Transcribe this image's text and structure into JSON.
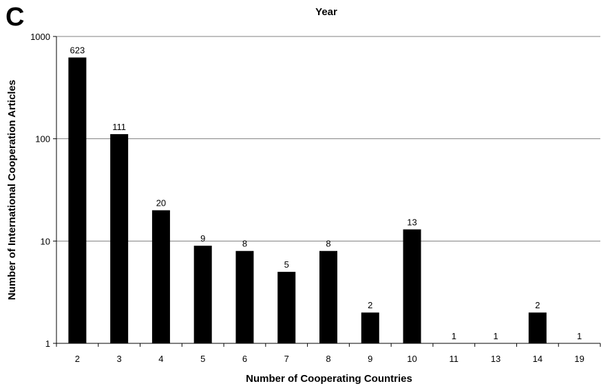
{
  "panel_label": "C",
  "chart_data": {
    "type": "bar",
    "title": "Year",
    "xlabel": "Number of Cooperating Countries",
    "ylabel": "Number of International Cooperation Articles",
    "y_scale": "log",
    "ylim": [
      1,
      1000
    ],
    "y_ticks": [
      1,
      10,
      100,
      1000
    ],
    "y_tick_labels": [
      "1",
      "10",
      "100",
      "1000"
    ],
    "categories": [
      "2",
      "3",
      "4",
      "5",
      "6",
      "7",
      "8",
      "9",
      "10",
      "11",
      "13",
      "14",
      "19"
    ],
    "values": [
      623,
      111,
      20,
      9,
      8,
      5,
      8,
      2,
      13,
      1,
      1,
      2,
      1
    ],
    "data_labels": [
      "623",
      "111",
      "20",
      "9",
      "8",
      "5",
      "8",
      "2",
      "13",
      "1",
      "1",
      "2",
      "1"
    ],
    "bar_color": "#000000",
    "grid": true,
    "grid_color": "#7f7f7f",
    "legend": "none"
  }
}
